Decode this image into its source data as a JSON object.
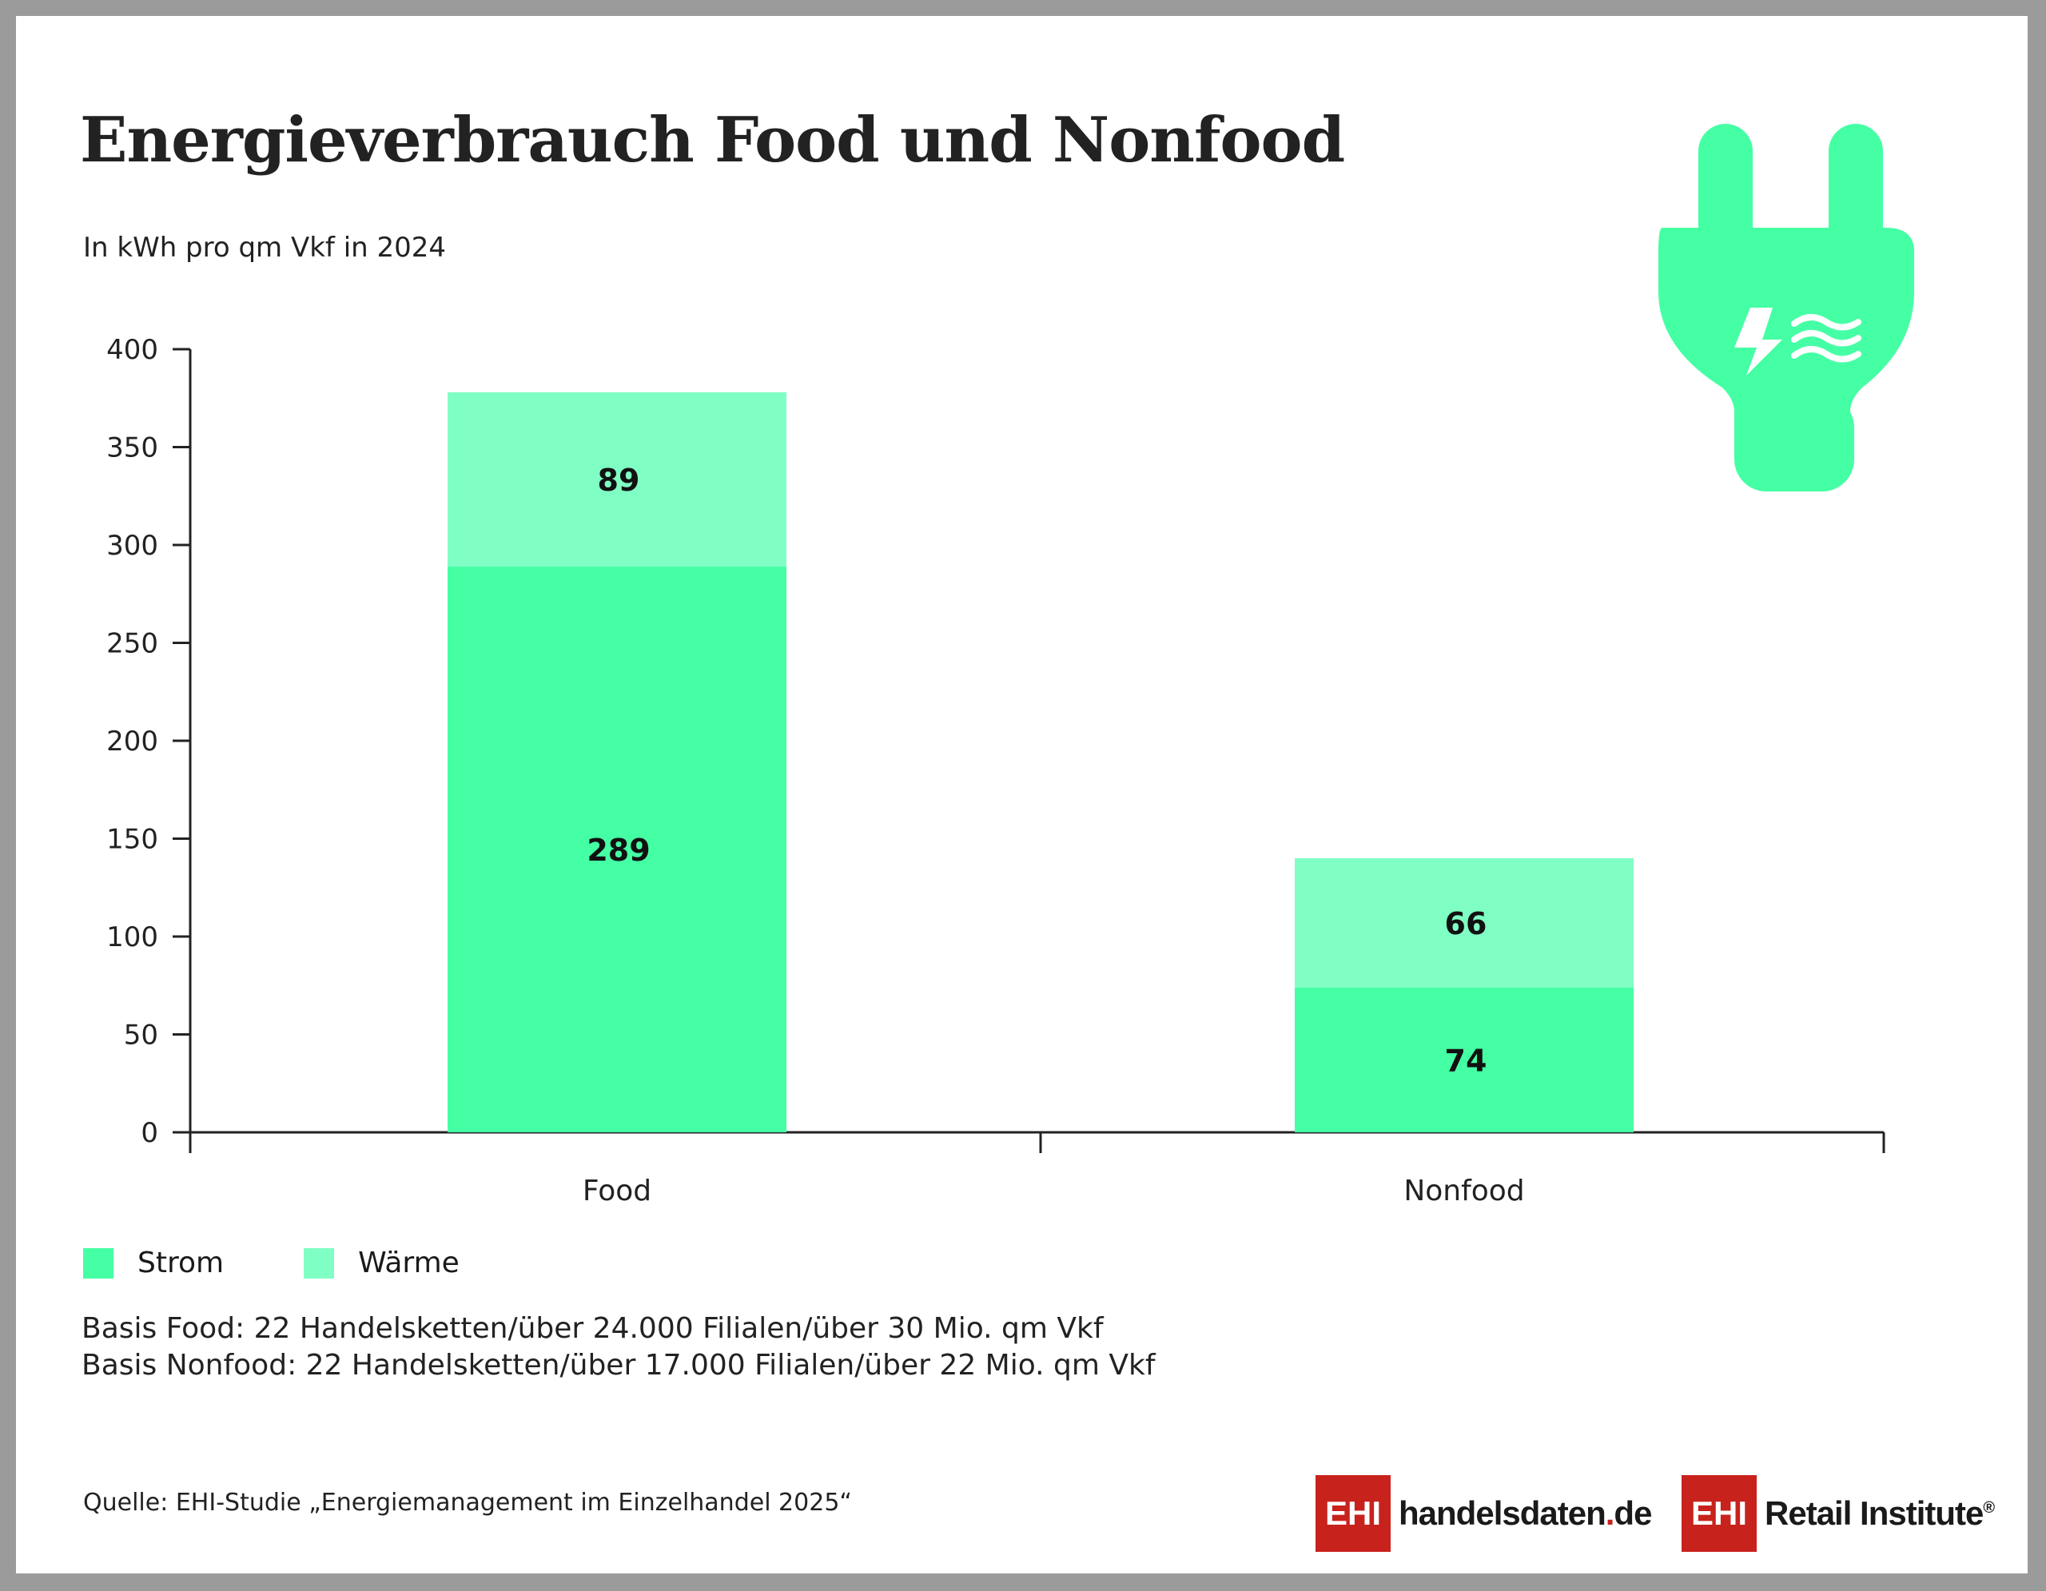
{
  "title": "Energieverbrauch Food und Nonfood",
  "subtitle": "In kWh pro qm Vkf in 2024",
  "chart_data": {
    "type": "bar",
    "stacked": true,
    "categories": [
      "Food",
      "Nonfood"
    ],
    "series": [
      {
        "name": "Strom",
        "values": [
          289,
          74
        ],
        "color": "#45ffa4"
      },
      {
        "name": "Wärme",
        "values": [
          89,
          66
        ],
        "color": "#80ffc4"
      }
    ],
    "ylim": [
      0,
      400
    ],
    "yticks": [
      0,
      50,
      100,
      150,
      200,
      250,
      300,
      350,
      400
    ],
    "grid": false,
    "legend": "bottom-left"
  },
  "legend": [
    {
      "label": "Strom",
      "color": "#45ffa4"
    },
    {
      "label": "Wärme",
      "color": "#80ffc4"
    }
  ],
  "basis": [
    "Basis Food: 22 Handelsketten/über 24.000 Filialen/über 30 Mio. qm Vkf",
    "Basis Nonfood: 22 Handelsketten/über 17.000 Filialen/über 22 Mio. qm Vkf"
  ],
  "source": "Quelle: EHI-Studie „Energiemanagement im Einzelhandel 2025“",
  "logos": {
    "ehi_box": "EHI",
    "handelsdaten_left": "handelsdaten",
    "handelsdaten_dot": ".",
    "handelsdaten_right": "de",
    "retail_institute": "Retail Institute",
    "registered": "®"
  },
  "icon": "plug-icon"
}
